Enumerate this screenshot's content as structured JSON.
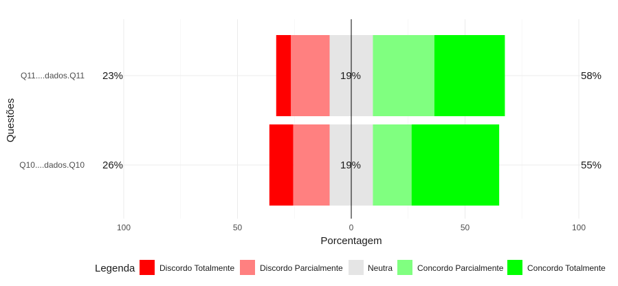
{
  "chart_data": {
    "type": "bar",
    "orientation": "horizontal",
    "stacked": "diverging",
    "xlabel": "Porcentagem",
    "ylabel": "Questões",
    "xlim": [
      -100,
      100
    ],
    "xticks": [
      -100,
      -50,
      0,
      50,
      100
    ],
    "xtick_labels": [
      "100",
      "50",
      "0",
      "50",
      "100"
    ],
    "grid": true,
    "legend_title": "Legenda",
    "legend_position": "bottom",
    "categories": [
      "Q11....dados.Q11",
      "Q10....dados.Q10"
    ],
    "series": [
      {
        "name": "Discordo Totalmente",
        "color": "#FF0000",
        "values": [
          6.5,
          10.5
        ]
      },
      {
        "name": "Discordo Parcialmente",
        "color": "#FF8080",
        "values": [
          17,
          16
        ]
      },
      {
        "name": "Neutra",
        "color": "#E5E5E5",
        "values": [
          19,
          19
        ]
      },
      {
        "name": "Concordo Parcialmente",
        "color": "#80FF80",
        "values": [
          27,
          17
        ]
      },
      {
        "name": "Concordo Totalmente",
        "color": "#00FF00",
        "values": [
          31,
          38.5
        ]
      }
    ],
    "labels": [
      {
        "left": "23%",
        "center": "19%",
        "right": "58%"
      },
      {
        "left": "26%",
        "center": "19%",
        "right": "55%"
      }
    ]
  }
}
